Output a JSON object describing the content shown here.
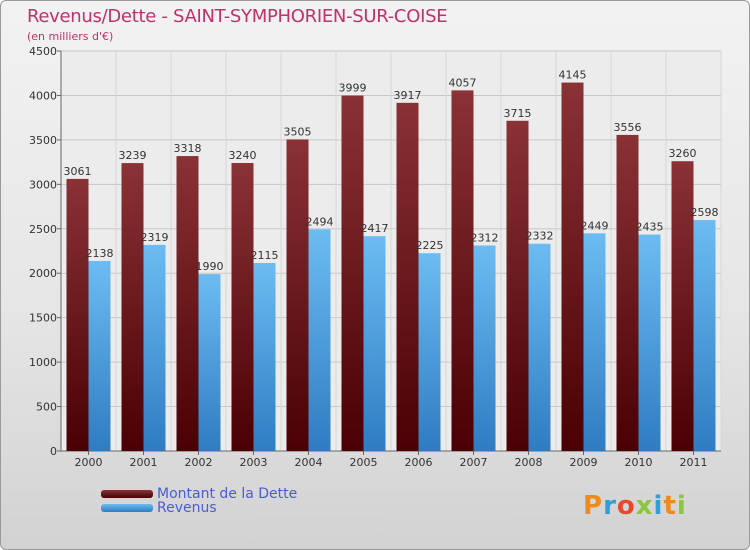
{
  "header": {
    "title": "Revenus/Dette - SAINT-SYMPHORIEN-SUR-COISE",
    "subtitle": "(en milliers d'€)"
  },
  "legend": {
    "dette": "Montant de la Dette",
    "revenus": "Revenus"
  },
  "logo": {
    "text": "Proxiti"
  },
  "colors": {
    "dette_top": "#8a3236",
    "dette_bottom": "#4a0004",
    "revenus_top": "#6cbcf2",
    "revenus_bottom": "#2f7cc2",
    "title": "#c0306a"
  },
  "chart_data": {
    "type": "bar",
    "title": "Revenus/Dette - SAINT-SYMPHORIEN-SUR-COISE",
    "subtitle": "(en milliers d'€)",
    "categories": [
      "2000",
      "2001",
      "2002",
      "2003",
      "2004",
      "2005",
      "2006",
      "2007",
      "2008",
      "2009",
      "2010",
      "2011"
    ],
    "series": [
      {
        "name": "Montant de la Dette",
        "values": [
          3061,
          3239,
          3318,
          3240,
          3505,
          3999,
          3917,
          4057,
          3715,
          4145,
          3556,
          3260
        ]
      },
      {
        "name": "Revenus",
        "values": [
          2138,
          2319,
          1990,
          2115,
          2494,
          2417,
          2225,
          2312,
          2332,
          2449,
          2435,
          2598
        ]
      }
    ],
    "ylim": [
      0,
      4500
    ],
    "yticks": [
      0,
      500,
      1000,
      1500,
      2000,
      2500,
      3000,
      3500,
      4000,
      4500
    ],
    "grid": true,
    "legend_position": "bottom-left"
  }
}
